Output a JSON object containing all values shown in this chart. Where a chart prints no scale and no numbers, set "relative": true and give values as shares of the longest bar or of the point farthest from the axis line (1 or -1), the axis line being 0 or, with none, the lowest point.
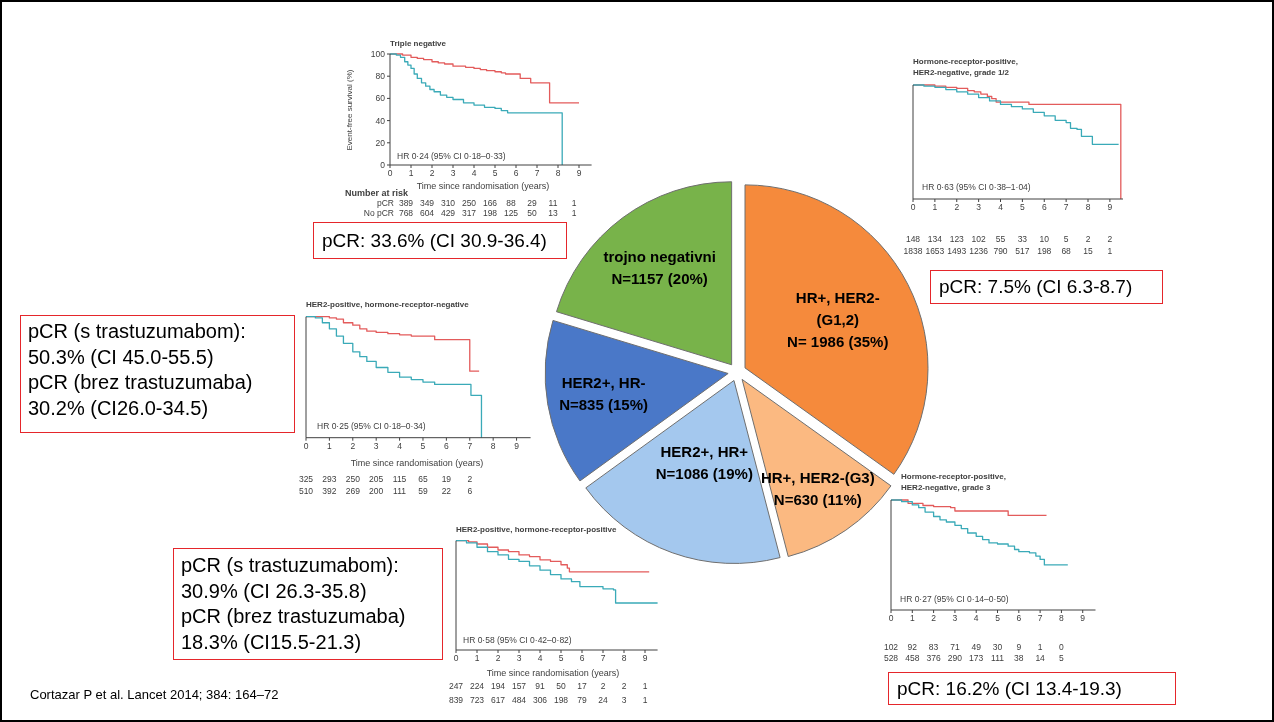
{
  "chart_data": [
    {
      "type": "step",
      "title": "Triple negative",
      "xlabel": "Time since randomisation (years)",
      "ylabel": "Event-free survival (%)",
      "xlim": [
        0,
        9.6
      ],
      "xticks": [
        0,
        1,
        2,
        3,
        4,
        5,
        6,
        7,
        8,
        9
      ],
      "ylim": [
        0,
        100
      ],
      "yticks": [
        0,
        20,
        40,
        60,
        80,
        100
      ],
      "series": [
        {
          "color": "#e35b5b",
          "x": [
            0,
            0.3,
            0.6,
            1,
            1.3,
            1.6,
            2,
            2.3,
            2.6,
            3,
            3.3,
            3.6,
            4,
            4.3,
            4.6,
            5,
            5.3,
            5.5,
            6.2,
            6.7,
            7.6,
            9
          ],
          "values": [
            100,
            100,
            99,
            97,
            96,
            95,
            93,
            92,
            91,
            89,
            89,
            88,
            87,
            86,
            85,
            84,
            83,
            82,
            78,
            74,
            56,
            56
          ]
        },
        {
          "color": "#3aaab8",
          "x": [
            0,
            0.3,
            0.5,
            0.7,
            0.85,
            1,
            1.15,
            1.3,
            1.5,
            1.7,
            1.9,
            2.1,
            2.4,
            2.7,
            3,
            3.5,
            4,
            4.5,
            5,
            5.3,
            5.6,
            8.2
          ],
          "values": [
            100,
            99,
            97,
            93,
            90,
            87,
            82,
            78,
            74,
            71,
            68,
            66,
            63,
            61,
            59,
            56,
            54,
            52,
            51,
            49,
            47,
            0
          ]
        }
      ],
      "annotations": [
        "HR 0·24 (95% CI 0·18–0·33)",
        "Number at risk",
        "pCR",
        "No pCR",
        "389 349 310 250 166 88 29 11 1",
        "768 604 429 317 198 125 50 13 1",
        "pCR: 33.6% (CI 30.9-36.4)"
      ]
    },
    {
      "type": "step",
      "title": "Hormone-receptor-positive,\nHER2-negative, grade 1/2",
      "relative": true,
      "xlim": [
        0,
        9.6
      ],
      "xticks": [
        0,
        1,
        2,
        3,
        4,
        5,
        6,
        7,
        8,
        9
      ],
      "series": [
        {
          "color": "#e35b5b",
          "x": [
            0,
            1,
            1.5,
            2,
            2.5,
            2.8,
            3.1,
            3.4,
            3.6,
            3.8,
            5.3,
            9.5
          ],
          "values": [
            1,
            0.99,
            0.98,
            0.97,
            0.95,
            0.94,
            0.92,
            0.9,
            0.88,
            0.85,
            0.83,
            0
          ]
        },
        {
          "color": "#3aaab8",
          "x": [
            0,
            0.5,
            1,
            1.5,
            2,
            2.5,
            3,
            3.5,
            4,
            4.5,
            5,
            5.5,
            6,
            6.5,
            7,
            7.2,
            7.5,
            7.7,
            8.2,
            9.4
          ],
          "values": [
            1,
            0.99,
            0.98,
            0.96,
            0.94,
            0.92,
            0.89,
            0.86,
            0.83,
            0.81,
            0.79,
            0.76,
            0.73,
            0.69,
            0.67,
            0.62,
            0.61,
            0.55,
            0.48,
            0.48
          ]
        }
      ],
      "annotations": [
        "HR 0·63 (95% CI 0·38–1·04)",
        "148 134 123 102 55 33 10 5 2 2",
        "1838 1653 1493 1236 790 517 198 68 15 1",
        "pCR: 7.5% (CI 6.3-8.7)"
      ]
    },
    {
      "type": "pie",
      "categories": [
        "HR+, HER2-\n(G1,2)",
        "HR+, HER2-(G3)",
        "HER2+, HR+",
        "HER2+, HR-",
        "trojno negativni"
      ],
      "values": [
        1986,
        630,
        1086,
        835,
        1157
      ],
      "value_labels": [
        "N= 1986 (35%)",
        "N=630 (11%)",
        "N=1086 (19%)",
        "N=835 (15%)",
        "N=1157 (20%)"
      ],
      "colors": [
        "#f58a3c",
        "#fbb981",
        "#a4c8ee",
        "#4a78c8",
        "#78b34a"
      ],
      "annotations": [
        "Cortazar P et al. Lancet 2014; 384: 164–72"
      ]
    },
    {
      "type": "step",
      "title": "HER2-positive, hormone-receptor-negative",
      "xlabel": "Time since randomisation (years)",
      "relative": true,
      "xlim": [
        0,
        9.6
      ],
      "xticks": [
        0,
        1,
        2,
        3,
        4,
        5,
        6,
        7,
        8,
        9
      ],
      "series": [
        {
          "color": "#e35b5b",
          "x": [
            0,
            0.8,
            1,
            1.3,
            1.6,
            2,
            2.3,
            2.6,
            3,
            3.5,
            4,
            4.5,
            5,
            5.5,
            7,
            7.4
          ],
          "values": [
            1,
            1,
            0.99,
            0.98,
            0.95,
            0.93,
            0.9,
            0.88,
            0.87,
            0.86,
            0.85,
            0.84,
            0.84,
            0.81,
            0.55,
            0.55
          ]
        },
        {
          "color": "#3aaab8",
          "x": [
            0,
            0.4,
            0.7,
            1,
            1.3,
            1.6,
            2,
            2.3,
            2.6,
            3,
            3.5,
            4,
            4.5,
            5,
            5.5,
            7.05,
            7.5
          ],
          "values": [
            1,
            0.99,
            0.95,
            0.9,
            0.84,
            0.78,
            0.71,
            0.67,
            0.63,
            0.58,
            0.54,
            0.5,
            0.48,
            0.46,
            0.44,
            0.35,
            0
          ]
        }
      ],
      "annotations": [
        "HR 0·25 (95% CI 0·18–0·34)",
        "325 293 250 205 115 65 19 2",
        "510 392 269 200 111 59 22 6",
        "pCR (s trastuzumabom):\n50.3% (CI 45.0-55.5)\npCR (brez trastuzumaba)\n30.2% (CI26.0-34.5)"
      ]
    },
    {
      "type": "step",
      "title": "Hormone-receptor-positive,\nHER2-negative, grade 3",
      "relative": true,
      "xlim": [
        0,
        9.6
      ],
      "xticks": [
        0,
        1,
        2,
        3,
        4,
        5,
        6,
        7,
        8,
        9
      ],
      "series": [
        {
          "color": "#e35b5b",
          "x": [
            0,
            0.8,
            1.5,
            2,
            2.8,
            3,
            5.5,
            7.3
          ],
          "values": [
            1,
            0.97,
            0.95,
            0.94,
            0.93,
            0.9,
            0.86,
            0.86
          ]
        },
        {
          "color": "#3aaab8",
          "x": [
            0,
            0.5,
            1,
            1.3,
            1.6,
            2,
            2.3,
            2.6,
            3,
            3.3,
            3.6,
            4,
            4.3,
            4.6,
            5,
            5.5,
            5.8,
            6,
            6.5,
            6.8,
            7,
            7.2,
            8.3
          ],
          "values": [
            1,
            0.985,
            0.955,
            0.93,
            0.89,
            0.85,
            0.82,
            0.8,
            0.77,
            0.74,
            0.7,
            0.67,
            0.64,
            0.61,
            0.6,
            0.58,
            0.55,
            0.53,
            0.52,
            0.49,
            0.46,
            0.41,
            0.41
          ]
        }
      ],
      "annotations": [
        "HR 0·27 (95% CI 0·14–0·50)",
        "102 92 83 71 49 30 9 1 0",
        "528 458 376 290 173 111 38 14 5",
        "pCR: 16.2% (CI 13.4-19.3)"
      ]
    },
    {
      "type": "step",
      "title": "HER2-positive, hormone-receptor-positive",
      "xlabel": "Time since randomisation (years)",
      "relative": true,
      "xlim": [
        0,
        9.6
      ],
      "xticks": [
        0,
        1,
        2,
        3,
        4,
        5,
        6,
        7,
        8,
        9
      ],
      "series": [
        {
          "color": "#e35b5b",
          "x": [
            0,
            0.6,
            1,
            1.5,
            2,
            2.5,
            3,
            3.5,
            4,
            4.5,
            5,
            5.3,
            5.4,
            9.2
          ],
          "values": [
            1,
            0.99,
            0.97,
            0.94,
            0.915,
            0.9,
            0.87,
            0.855,
            0.825,
            0.81,
            0.78,
            0.75,
            0.715,
            0.715
          ]
        },
        {
          "color": "#3aaab8",
          "x": [
            0,
            0.5,
            1,
            1.5,
            2,
            2.5,
            3,
            3.5,
            4,
            4.5,
            5,
            5.5,
            5.9,
            7,
            7.5,
            7.6,
            9.6
          ],
          "values": [
            1,
            0.98,
            0.94,
            0.9,
            0.87,
            0.83,
            0.81,
            0.77,
            0.73,
            0.69,
            0.65,
            0.625,
            0.58,
            0.56,
            0.55,
            0.43,
            0.43
          ]
        }
      ],
      "annotations": [
        "HR 0·58 (95% CI 0·42–0·82)",
        "247 224 194 157 91 50 17 2 2 1",
        "839 723 617 484 306 198 79 24 3 1",
        "pCR (s trastuzumabom):\n30.9% (CI 26.3-35.8)\npCR (brez trastuzumaba)\n18.3% (CI15.5-21.3)"
      ]
    }
  ]
}
